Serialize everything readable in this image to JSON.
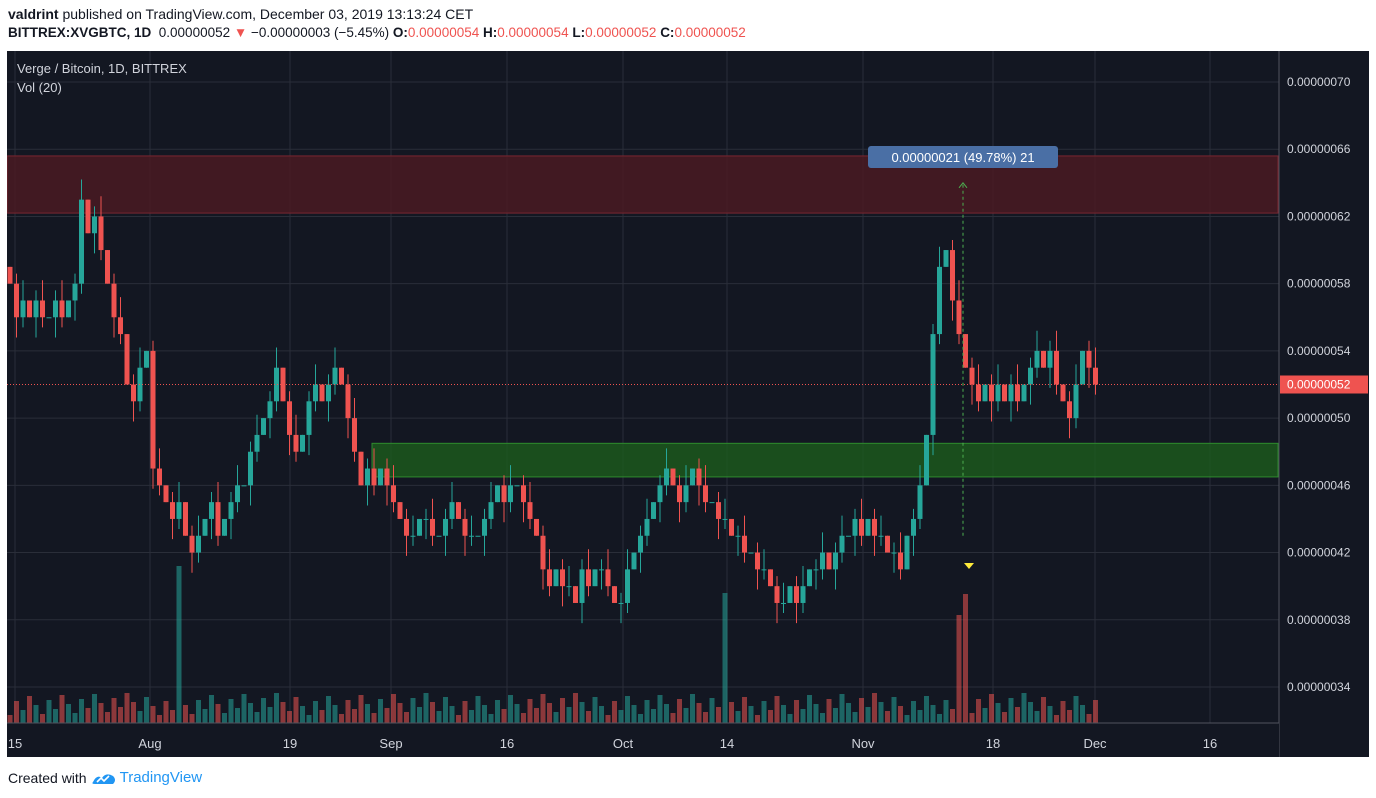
{
  "header": {
    "author": "valdrint",
    "published_text": "published on TradingView.com, December 03, 2019 13:13:24 CET",
    "symbol": "BITTREX:XVGBTC, 1D",
    "last_price": "0.00000052",
    "change": "−0.00000003 (−5.45%)",
    "open_label": "O:",
    "open": "0.00000054",
    "high_label": "H:",
    "high": "0.00000054",
    "low_label": "L:",
    "low": "0.00000052",
    "close_label": "C:",
    "close": "0.00000052"
  },
  "legend": {
    "title": "Verge / Bitcoin, 1D, BITTREX",
    "volume": "Vol (20)"
  },
  "measure_label": "0.00000021 (49.78%) 21",
  "footer": {
    "created_with": "Created with",
    "brand": "TradingView"
  },
  "colors": {
    "background": "#131722",
    "up": "#26a69a",
    "down": "#ef5350",
    "resistance_zone": "#4a1a22",
    "support_zone": "#1d5c1d",
    "measure_box": "#4a6fa5",
    "price_tag": "#ef5350"
  },
  "chart_data": {
    "type": "candlestick",
    "symbol": "XVGBTC",
    "exchange": "BITTREX",
    "timeframe": "1D",
    "ylim": [
      3.1e-07,
      7.1e-07
    ],
    "y_ticks": [
      "0.00000070",
      "0.00000066",
      "0.00000062",
      "0.00000058",
      "0.00000054",
      "0.00000050",
      "0.00000046",
      "0.00000042",
      "0.00000038",
      "0.00000034"
    ],
    "x_ticks": [
      "15",
      "Aug",
      "19",
      "Sep",
      "16",
      "Oct",
      "14",
      "Nov",
      "18",
      "Dec",
      "16"
    ],
    "current_price": "0.00000052",
    "resistance_zone": [
      6.22e-07,
      6.56e-07
    ],
    "support_zone": [
      4.65e-07,
      4.85e-07
    ],
    "measurement": {
      "from": 4.3e-07,
      "to": 6.4e-07,
      "change": "0.00000021",
      "percent": "49.78%",
      "bars": 21
    },
    "candles_close_1e8": [
      58,
      56,
      57,
      56,
      57,
      56,
      56,
      57,
      56,
      57,
      58,
      63,
      61,
      62,
      60,
      58,
      56,
      55,
      52,
      51,
      53,
      54,
      47,
      46,
      45,
      44,
      45,
      43,
      42,
      43,
      44,
      45,
      43,
      44,
      45,
      46,
      46,
      48,
      49,
      50,
      51,
      53,
      51,
      49,
      48,
      49,
      51,
      52,
      51,
      52,
      53,
      52,
      50,
      48,
      46,
      47,
      46,
      47,
      46,
      45,
      44,
      43,
      43,
      44,
      44,
      43,
      43,
      44,
      45,
      44,
      43,
      43,
      43,
      44,
      45,
      46,
      45,
      46,
      46,
      45,
      44,
      43,
      41,
      40,
      41,
      40,
      40,
      39,
      41,
      40,
      41,
      41,
      40,
      39,
      39,
      41,
      42,
      43,
      44,
      45,
      46,
      47,
      46,
      45,
      46,
      47,
      46,
      45,
      45,
      44,
      44,
      43,
      43,
      42,
      42,
      41,
      41,
      40,
      39,
      39,
      40,
      39,
      40,
      41,
      41,
      42,
      41,
      42,
      43,
      43,
      44,
      43,
      44,
      43,
      43,
      42,
      42,
      41,
      43,
      44,
      46,
      49,
      55,
      59,
      60,
      57,
      55,
      53,
      52,
      51,
      52,
      51,
      52,
      51,
      52,
      51,
      52,
      53,
      54,
      53,
      54,
      52,
      51,
      50,
      52,
      54,
      53,
      52
    ]
  }
}
